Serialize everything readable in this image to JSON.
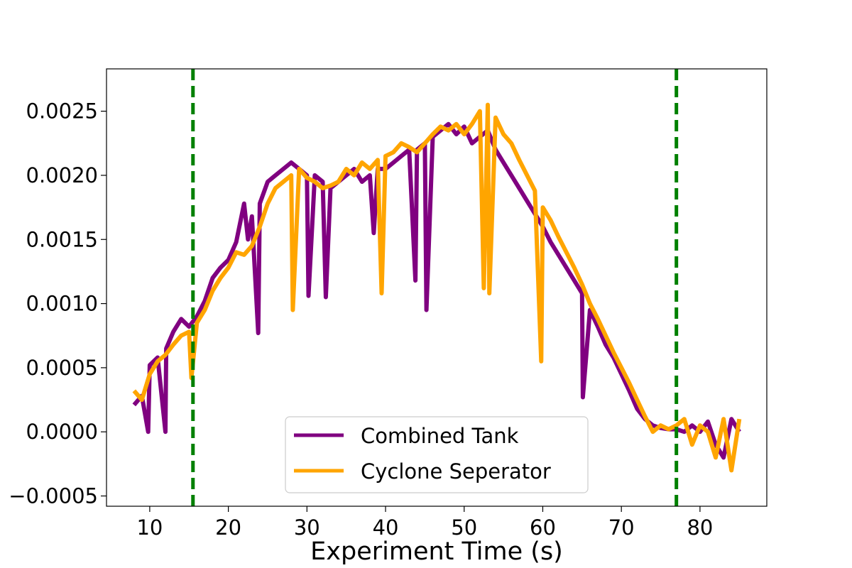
{
  "chart_data": {
    "type": "line",
    "title": "",
    "xlabel": "Experiment Time (s)",
    "ylabel": "",
    "xlim": [
      4.5,
      88.5
    ],
    "ylim": [
      -0.00058,
      0.00283
    ],
    "x_ticks": [
      10,
      20,
      30,
      40,
      50,
      60,
      70,
      80
    ],
    "y_ticks": [
      -0.0005,
      0.0,
      0.0005,
      0.001,
      0.0015,
      0.002,
      0.0025
    ],
    "y_tick_labels": [
      "−0.0005",
      "0.0000",
      "0.0005",
      "0.0010",
      "0.0015",
      "0.0020",
      "0.0025"
    ],
    "grid": false,
    "legend": {
      "position": "lower-center"
    },
    "vertical_lines": [
      {
        "x": 15.5,
        "color": "#008000",
        "style": "dashed"
      },
      {
        "x": 77.0,
        "color": "#008000",
        "style": "dashed"
      }
    ],
    "series": [
      {
        "name": "Combined Tank",
        "color": "#800080",
        "x": [
          8,
          9,
          9.8,
          10,
          11,
          12,
          12.1,
          13,
          14,
          15,
          16,
          17,
          18,
          19,
          20,
          21,
          22,
          22.5,
          23,
          23.8,
          24,
          25,
          26,
          27,
          28,
          29,
          30,
          30.2,
          31,
          32,
          32.4,
          33,
          34,
          35,
          36,
          37,
          38,
          38.5,
          39,
          40,
          41,
          42,
          43,
          43.8,
          44,
          45,
          45.2,
          46,
          47,
          48,
          49,
          50,
          51,
          52,
          53,
          54,
          55,
          56,
          57,
          58,
          59,
          60,
          61,
          62,
          63,
          64,
          65,
          65.1,
          66,
          67,
          68,
          69,
          70,
          71,
          72,
          73,
          74,
          75,
          76,
          77,
          78,
          79,
          80,
          81,
          82,
          83,
          84,
          85
        ],
        "values": [
          0.00021,
          0.00028,
          0.0,
          0.00052,
          0.00058,
          0.0,
          0.00065,
          0.00078,
          0.00088,
          0.00082,
          0.0009,
          0.00102,
          0.0012,
          0.00128,
          0.00134,
          0.00148,
          0.00178,
          0.0015,
          0.00168,
          0.00077,
          0.00178,
          0.00195,
          0.002,
          0.00205,
          0.0021,
          0.00205,
          0.002,
          0.00106,
          0.002,
          0.00195,
          0.00105,
          0.0019,
          0.00195,
          0.002,
          0.00205,
          0.00195,
          0.002,
          0.00155,
          0.00205,
          0.00205,
          0.0021,
          0.00215,
          0.0022,
          0.00118,
          0.0022,
          0.00225,
          0.00095,
          0.0023,
          0.00235,
          0.0024,
          0.00232,
          0.00238,
          0.00225,
          0.0023,
          0.00235,
          0.0022,
          0.0021,
          0.002,
          0.0019,
          0.0018,
          0.0017,
          0.0016,
          0.00148,
          0.00138,
          0.00128,
          0.00118,
          0.00108,
          0.00027,
          0.00095,
          0.00082,
          0.00068,
          0.00058,
          0.00045,
          0.00032,
          0.00018,
          0.0001,
          5e-05,
          3e-05,
          2e-05,
          2e-05,
          0.0,
          5e-05,
          0.0,
          8e-05,
          -0.0001,
          -0.0002,
          0.0001,
          0.0
        ]
      },
      {
        "name": "Cyclone Seperator",
        "color": "#FFA500",
        "x": [
          8,
          9,
          10,
          11,
          12,
          13,
          14,
          15,
          15.3,
          16,
          17,
          18,
          19,
          20,
          21,
          22,
          23,
          24,
          25,
          26,
          27,
          28,
          28.2,
          29,
          30,
          31,
          32,
          33,
          34,
          35,
          36,
          37,
          38,
          39,
          39.5,
          40,
          41,
          42,
          43,
          44,
          45,
          46,
          47,
          48,
          49,
          50,
          51,
          52,
          52.5,
          53,
          53.2,
          54,
          55,
          56,
          57,
          58,
          59,
          59.8,
          60,
          61,
          62,
          63,
          64,
          65,
          66,
          67,
          68,
          69,
          70,
          71,
          72,
          73,
          74,
          75,
          76,
          77,
          78,
          79,
          80,
          81,
          82,
          83,
          84,
          85
        ],
        "values": [
          0.00032,
          0.00025,
          0.00045,
          0.00055,
          0.0006,
          0.00068,
          0.00075,
          0.00078,
          0.00042,
          0.00085,
          0.00095,
          0.0011,
          0.0012,
          0.00128,
          0.0014,
          0.00138,
          0.00145,
          0.0016,
          0.00178,
          0.0019,
          0.00195,
          0.002,
          0.00095,
          0.00205,
          0.00198,
          0.00195,
          0.0019,
          0.00192,
          0.00195,
          0.00205,
          0.002,
          0.0021,
          0.00205,
          0.00212,
          0.00108,
          0.00215,
          0.00218,
          0.00225,
          0.00222,
          0.00218,
          0.00225,
          0.00232,
          0.00238,
          0.00235,
          0.0024,
          0.00232,
          0.0024,
          0.0025,
          0.00112,
          0.00255,
          0.00108,
          0.00245,
          0.00232,
          0.00225,
          0.00212,
          0.002,
          0.00188,
          0.00055,
          0.00175,
          0.00165,
          0.00152,
          0.0014,
          0.00128,
          0.00115,
          0.001,
          0.00088,
          0.00075,
          0.00062,
          0.0005,
          0.00038,
          0.00025,
          0.00012,
          0.0,
          5e-05,
          2e-05,
          5e-05,
          0.0001,
          -0.0001,
          5e-05,
          0.0,
          -0.0002,
          0.0001,
          -0.0003,
          0.0001
        ]
      }
    ]
  }
}
